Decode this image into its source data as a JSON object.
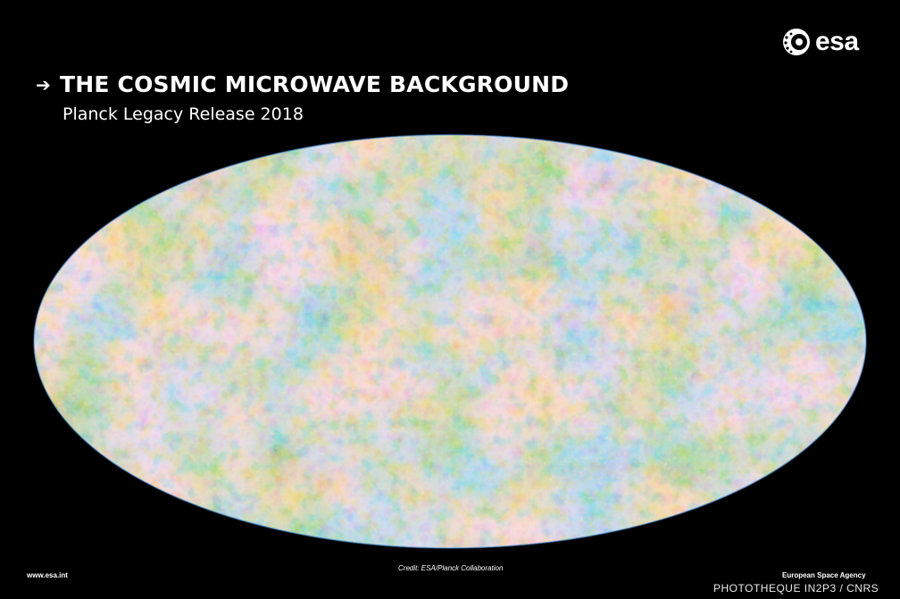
{
  "header": {
    "title": "THE COSMIC MICROWAVE BACKGROUND",
    "subtitle": "Planck Legacy Release 2018",
    "arrow_icon": "arrow-right-icon"
  },
  "logo": {
    "text": "esa",
    "icon": "esa-emblem-icon"
  },
  "footer": {
    "website": "www.esa.int",
    "credit": "Credit: ESA/Planck Collaboration",
    "agency": "European Space Agency",
    "photo_credit": "PHOTOTHEQUE IN2P3 / CNRS"
  },
  "colors": {
    "background": "#000000",
    "cold": "#1f5fc4",
    "cool": "#5fa8e0",
    "neutral": "#dfe3b8",
    "warm": "#f3a24a",
    "hot": "#c9430f"
  }
}
